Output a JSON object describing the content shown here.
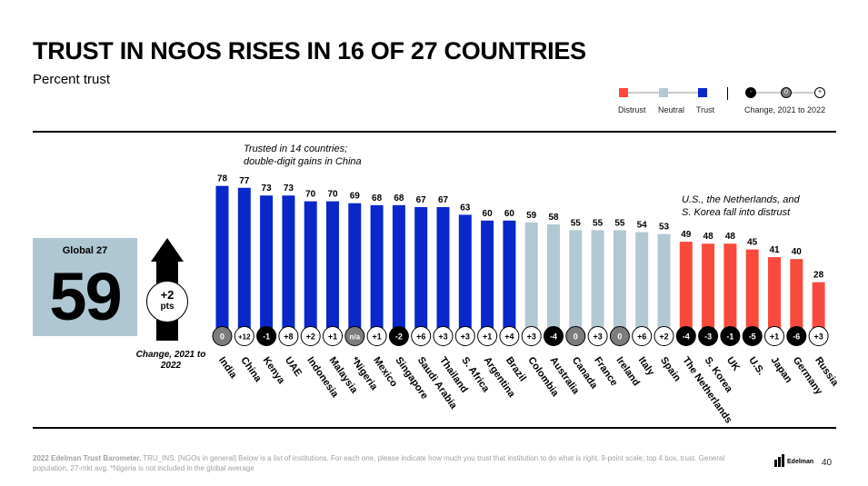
{
  "title": "TRUST IN NGOS RISES IN 16 OF 27 COUNTRIES",
  "subtitle": "Percent trust",
  "legend": {
    "distrust": "Distrust",
    "neutral": "Neutral",
    "trust": "Trust",
    "change_label": "Change, 2021 to 2022",
    "change_minus": "-",
    "change_zero": "0",
    "change_plus": "+"
  },
  "colors": {
    "trust": "#0a27c9",
    "neutral": "#b2c8d2",
    "distrust": "#f84a3c",
    "neg_badge": "#000000",
    "zero_badge": "#7c7c7c"
  },
  "global": {
    "label": "Global 27",
    "value": "59",
    "change_value": "+2",
    "change_unit": "pts",
    "change_caption": "Change, 2021 to 2022"
  },
  "annotations": {
    "trusted_line1": "Trusted in 14 countries;",
    "trusted_line2": "double-digit gains in China",
    "distrust_line1": "U.S., the Netherlands, and",
    "distrust_line2": "S. Korea fall into distrust"
  },
  "chart_data": {
    "type": "bar",
    "title": "TRUST IN NGOS RISES IN 16 OF 27 COUNTRIES",
    "ylabel": "Percent trust",
    "ylim": [
      0,
      80
    ],
    "categories": [
      "India",
      "China",
      "Kenya",
      "UAE",
      "Indonesia",
      "Malaysia",
      "*Nigeria",
      "Mexico",
      "Singapore",
      "Saudi Arabia",
      "Thailand",
      "S. Africa",
      "Argentina",
      "Brazil",
      "Colombia",
      "Australia",
      "Canada",
      "France",
      "Ireland",
      "Italy",
      "Spain",
      "The Netherlands",
      "S. Korea",
      "UK",
      "U.S.",
      "Japan",
      "Germany",
      "Russia"
    ],
    "values": [
      78,
      77,
      73,
      73,
      70,
      70,
      69,
      68,
      68,
      67,
      67,
      63,
      60,
      60,
      59,
      58,
      55,
      55,
      55,
      54,
      53,
      49,
      48,
      48,
      45,
      41,
      40,
      28
    ],
    "categories_status": [
      "trust",
      "trust",
      "trust",
      "trust",
      "trust",
      "trust",
      "trust",
      "trust",
      "trust",
      "trust",
      "trust",
      "trust",
      "trust",
      "trust",
      "neutral",
      "neutral",
      "neutral",
      "neutral",
      "neutral",
      "neutral",
      "neutral",
      "distrust",
      "distrust",
      "distrust",
      "distrust",
      "distrust",
      "distrust",
      "distrust"
    ],
    "change": [
      "0",
      "+12",
      "-1",
      "+8",
      "+2",
      "+1",
      "n/a",
      "+1",
      "-2",
      "+6",
      "+3",
      "+3",
      "+1",
      "+4",
      "+3",
      "-4",
      "0",
      "+3",
      "0",
      "+6",
      "+2",
      "-4",
      "-3",
      "-1",
      "-5",
      "+1",
      "-6",
      "+3"
    ]
  },
  "source": "2022 Edelman Trust Barometer. TRU_INS. [NGOs in general] Below is a list of institutions. For each one, please indicate how much you trust that institution to do what is right. 9-point scale; top 4 box, trust. General population, 27-mkt avg. *Nigeria is not included in the global average",
  "source_bold": "2022 Edelman Trust Barometer.",
  "source_rest": " TRU_INS. [NGOs in general] Below is a list of institutions. For each one, please indicate how much you trust that institution to do what is right. 9-point scale; top 4 box, trust. General population, 27-mkt avg. *Nigeria is not included in the global average",
  "logo": "Edelman",
  "page_number": "40"
}
